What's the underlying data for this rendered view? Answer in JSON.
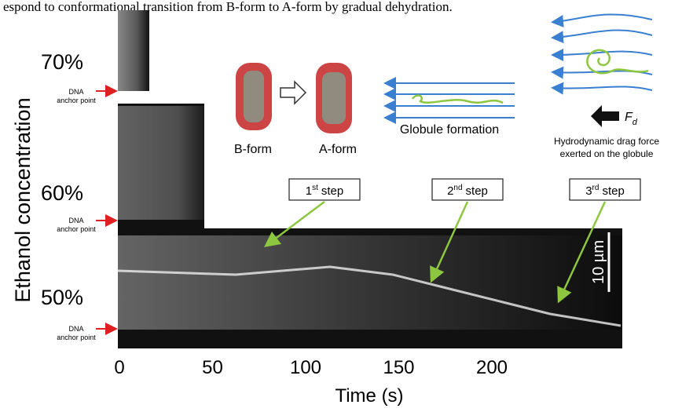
{
  "caption": "espond to conformational transition from B-form to A-form by gradual dehydration.",
  "y_label": "Ethanol concentration",
  "concentrations": [
    "70%",
    "60%",
    "50%"
  ],
  "anchor": {
    "line1": "DNA",
    "line2": "anchor point"
  },
  "diagram": {
    "b_form": "B-form",
    "a_form": "A-form",
    "globule": "Globule formation",
    "force_symbol": "F",
    "force_sub": "d",
    "drag_line1": "Hydrodynamic drag force",
    "drag_line2": "exerted on the globule"
  },
  "steps": [
    {
      "num": "1",
      "sup": "st",
      "word": "step"
    },
    {
      "num": "2",
      "sup": "nd",
      "word": "step"
    },
    {
      "num": "3",
      "sup": "rd",
      "word": "step"
    }
  ],
  "scale_bar": "10 µm",
  "x_axis": {
    "label": "Time (s)",
    "ticks": [
      "0",
      "50",
      "100",
      "150",
      "200"
    ]
  }
}
